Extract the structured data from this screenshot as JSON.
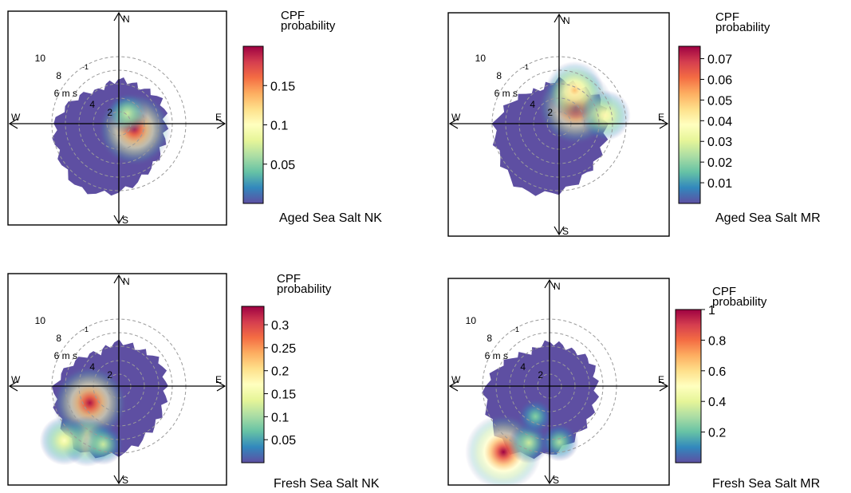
{
  "colorbar_title_line1": "CPF",
  "colorbar_title_line2": "probability",
  "palette": [
    "#5e4fa2",
    "#3288bd",
    "#66c2a5",
    "#abdda4",
    "#e6f598",
    "#ffffbf",
    "#fee08b",
    "#fdae61",
    "#f46d43",
    "#d53e4f",
    "#9e0142"
  ],
  "chart_data": [
    {
      "type": "heatmap",
      "subtype": "polar-bivariate",
      "label": "Aged Sea Salt NK",
      "compass": [
        "N",
        "E",
        "S",
        "W"
      ],
      "radial_axis": {
        "unit": "m s-1",
        "rings": [
          2,
          4,
          6,
          8,
          10
        ],
        "tick_labels": [
          "2",
          "4",
          "6 m s",
          "8",
          "10"
        ],
        "max": 12
      },
      "colorbar": {
        "min": 0.0,
        "max": 0.2,
        "ticks": [
          0.05,
          0.1,
          0.15
        ],
        "tick_labels": [
          "0.05",
          "0.1",
          "0.15"
        ]
      },
      "hotspots": [
        {
          "dir_deg": 110,
          "ws": 2.5,
          "value": 0.19
        },
        {
          "dir_deg": 40,
          "ws": 2.0,
          "value": 0.07
        }
      ]
    },
    {
      "type": "heatmap",
      "subtype": "polar-bivariate",
      "label": "Aged Sea Salt MR",
      "compass": [
        "N",
        "E",
        "S",
        "W"
      ],
      "radial_axis": {
        "unit": "m s-1",
        "rings": [
          2,
          4,
          6,
          8,
          10
        ],
        "tick_labels": [
          "2",
          "4",
          "6 m s",
          "8",
          "10"
        ],
        "max": 12
      },
      "colorbar": {
        "min": 0.0,
        "max": 0.076,
        "ticks": [
          0.01,
          0.02,
          0.03,
          0.04,
          0.05,
          0.06,
          0.07
        ],
        "tick_labels": [
          "0.01",
          "0.02",
          "0.03",
          "0.04",
          "0.05",
          "0.06",
          "0.07"
        ]
      },
      "hotspots": [
        {
          "dir_deg": 45,
          "ws": 3.5,
          "value": 0.075
        },
        {
          "dir_deg": 25,
          "ws": 5.5,
          "value": 0.05
        },
        {
          "dir_deg": 80,
          "ws": 7.0,
          "value": 0.04
        }
      ]
    },
    {
      "type": "heatmap",
      "subtype": "polar-bivariate",
      "label": "Fresh Sea Salt NK",
      "compass": [
        "N",
        "E",
        "S",
        "W"
      ],
      "radial_axis": {
        "unit": "m s-1",
        "rings": [
          2,
          4,
          6,
          8,
          10
        ],
        "tick_labels": [
          "2",
          "4",
          "6 m s",
          "8",
          "10"
        ],
        "max": 12
      },
      "colorbar": {
        "min": 0.0,
        "max": 0.34,
        "ticks": [
          0.05,
          0.1,
          0.15,
          0.2,
          0.25,
          0.3
        ],
        "tick_labels": [
          "0.05",
          "0.1",
          "0.15",
          "0.2",
          "0.25",
          "0.3"
        ]
      },
      "hotspots": [
        {
          "dir_deg": 240,
          "ws": 5.0,
          "value": 0.33
        },
        {
          "dir_deg": 210,
          "ws": 9.5,
          "value": 0.18
        },
        {
          "dir_deg": 225,
          "ws": 11.5,
          "value": 0.17
        },
        {
          "dir_deg": 195,
          "ws": 9.0,
          "value": 0.12
        }
      ]
    },
    {
      "type": "heatmap",
      "subtype": "polar-bivariate",
      "label": "Fresh Sea Salt MR",
      "compass": [
        "N",
        "E",
        "S",
        "W"
      ],
      "radial_axis": {
        "unit": "m s-1",
        "rings": [
          2,
          4,
          6,
          8,
          10
        ],
        "tick_labels": [
          "2",
          "4",
          "6 m s",
          "8",
          "10"
        ],
        "max": 12
      },
      "colorbar": {
        "min": 0.0,
        "max": 1.0,
        "ticks": [
          0.2,
          0.4,
          0.6,
          0.8,
          1
        ],
        "tick_labels": [
          "0.2",
          "0.4",
          "0.6",
          "0.8",
          "1"
        ]
      },
      "hotspots": [
        {
          "dir_deg": 215,
          "ws": 12.0,
          "value": 1.0
        },
        {
          "dir_deg": 200,
          "ws": 9.0,
          "value": 0.35
        },
        {
          "dir_deg": 170,
          "ws": 8.5,
          "value": 0.3
        },
        {
          "dir_deg": 205,
          "ws": 5.0,
          "value": 0.25
        }
      ]
    }
  ]
}
